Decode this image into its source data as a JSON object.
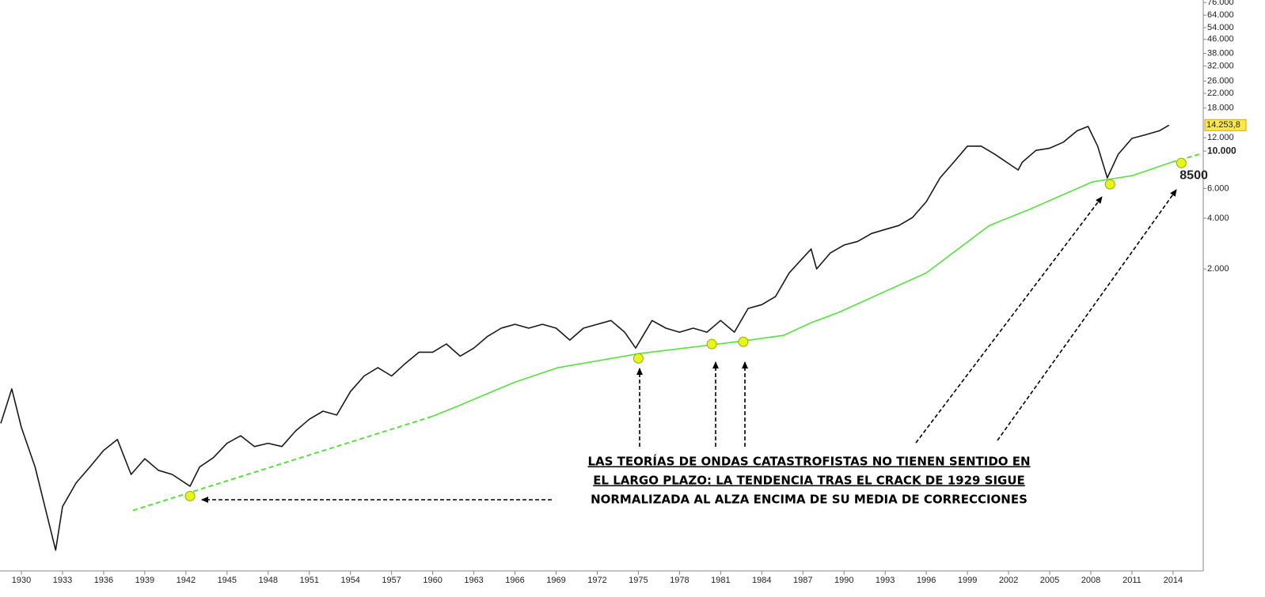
{
  "chart_data": {
    "type": "line",
    "ylog": true,
    "xlim": [
      1928.44,
      2016.2
    ],
    "ylim": [
      32.4,
      78700
    ],
    "xticks": [
      1930,
      1933,
      1936,
      1939,
      1942,
      1945,
      1948,
      1951,
      1954,
      1957,
      1960,
      1963,
      1966,
      1969,
      1972,
      1975,
      1978,
      1981,
      1984,
      1987,
      1990,
      1993,
      1996,
      1999,
      2002,
      2005,
      2008,
      2011,
      2014
    ],
    "yticks": [
      {
        "value": 76000,
        "label": "76.000"
      },
      {
        "value": 64000,
        "label": "64.000"
      },
      {
        "value": 54000,
        "label": "54.000"
      },
      {
        "value": 46000,
        "label": "46.000"
      },
      {
        "value": 38000,
        "label": "38.000"
      },
      {
        "value": 32000,
        "label": "32.000"
      },
      {
        "value": 26000,
        "label": "26.000"
      },
      {
        "value": 22000,
        "label": "22.000"
      },
      {
        "value": 18000,
        "label": "18.000"
      },
      {
        "value": 12000,
        "label": "12.000"
      },
      {
        "value": 10000,
        "label": "10.000",
        "bold": true
      },
      {
        "value": 6000,
        "label": "6.000"
      },
      {
        "value": 4000,
        "label": "4.000"
      },
      {
        "value": 2000,
        "label": "2.000"
      }
    ],
    "series": [
      {
        "color": "#1a1a1a",
        "dashed": false,
        "x": [
          1928.5,
          1929.3,
          1930,
          1931,
          1932.5,
          1933,
          1934,
          1935,
          1936,
          1937,
          1938,
          1939,
          1940,
          1941,
          1942.3,
          1943,
          1944,
          1945,
          1946,
          1947,
          1948,
          1949,
          1950,
          1951,
          1952,
          1953,
          1954,
          1955,
          1956,
          1957,
          1958,
          1959,
          1960,
          1961,
          1962,
          1963,
          1964,
          1965,
          1966,
          1967,
          1968,
          1969,
          1970,
          1971,
          1972,
          1973,
          1974,
          1974.8,
          1976,
          1977,
          1978,
          1979,
          1980,
          1981,
          1982,
          1983,
          1984,
          1985,
          1986,
          1987.6,
          1988,
          1989,
          1990,
          1991,
          1992,
          1993,
          1994,
          1995,
          1996,
          1997,
          1998,
          1999,
          2000,
          2001,
          2002.7,
          2003,
          2004,
          2005,
          2006,
          2007,
          2007.8,
          2008.5,
          2009.2,
          2010,
          2011,
          2012,
          2013,
          2013.7
        ],
        "values": [
          243,
          389,
          230,
          134,
          43,
          78,
          108,
          134,
          168,
          195,
          121,
          150,
          128,
          121,
          103,
          134,
          152,
          185,
          205,
          177,
          185,
          177,
          219,
          257,
          287,
          272,
          375,
          464,
          520,
          464,
          550,
          642,
          642,
          718,
          608,
          679,
          797,
          891,
          940,
          891,
          940,
          891,
          757,
          891,
          940,
          990,
          844,
          679,
          990,
          891,
          844,
          891,
          844,
          990,
          844,
          1166,
          1229,
          1371,
          1894,
          2627,
          2000,
          2490,
          2771,
          2915,
          3246,
          3430,
          3620,
          4040,
          5010,
          6930,
          8600,
          10700,
          10700,
          9580,
          7720,
          8600,
          10100,
          10400,
          11300,
          13200,
          14000,
          10700,
          6930,
          9580,
          11900,
          12500,
          13200,
          14250
        ]
      },
      {
        "color": "#55e23c",
        "dashed": true,
        "x": [
          1938.14,
          1959.9
        ],
        "values": [
          74,
          266
        ]
      },
      {
        "color": "#55e23c",
        "dashed": false,
        "x": [
          1959.9,
          1961.6,
          1966.0,
          1969.1,
          1975.1,
          1980.3,
          1982.7,
          1985.6,
          1987.6,
          1989.6,
          1996.0,
          2000.6,
          2003.5,
          2008.1,
          2011.0,
          2013.9
        ],
        "values": [
          266,
          302,
          427,
          519,
          630,
          709,
          749,
          808,
          960,
          1105,
          1896,
          3620,
          4500,
          6560,
          7150,
          8600
        ]
      },
      {
        "color": "#55e23c",
        "dashed": true,
        "x": [
          2013.9,
          2016.1
        ],
        "values": [
          8600,
          9680
        ]
      }
    ],
    "highlights": {
      "color": "#e6f51a",
      "x": [
        1942.3,
        1975.0,
        1980.35,
        1982.65,
        2009.4
      ],
      "values": [
        90,
        590,
        717,
        740,
        6350
      ]
    },
    "target": {
      "x": 2014.6,
      "value": 8500
    },
    "last_price": {
      "value": 14253.8,
      "label": "14.253,8"
    },
    "annotation": [
      "LAS TEORÍAS DE ONDAS CATASTROFISTAS NO TIENEN SENTIDO EN",
      "EL LARGO PLAZO: LA TENDENCIA TRAS EL CRACK DE 1929 SIGUE",
      "NORMALIZADA AL ALZA ENCIMA DE SU MEDIA DE CORRECCIONES"
    ]
  }
}
